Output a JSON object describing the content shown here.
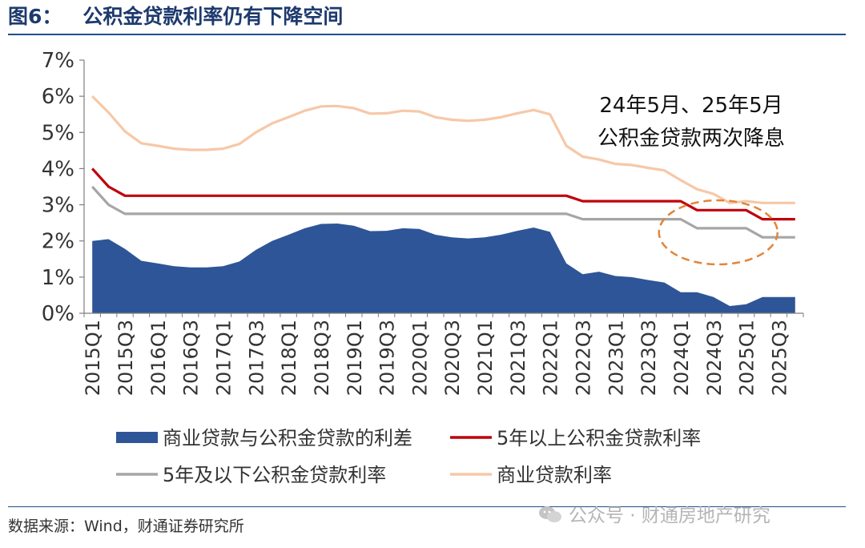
{
  "figure": {
    "label": "图6：",
    "title": "公积金贷款利率仍有下降空间",
    "source": "数据来源：Wind，财通证券研究所",
    "watermark": "公众号 · 财通房地产研究"
  },
  "chart_data": {
    "type": "area+line",
    "ylim": [
      0,
      7
    ],
    "yticks": [
      "0%",
      "1%",
      "2%",
      "3%",
      "4%",
      "5%",
      "6%",
      "7%"
    ],
    "categories": [
      "2015Q1",
      "2015Q2",
      "2015Q3",
      "2015Q4",
      "2016Q1",
      "2016Q2",
      "2016Q3",
      "2016Q4",
      "2017Q1",
      "2017Q2",
      "2017Q3",
      "2017Q4",
      "2018Q1",
      "2018Q2",
      "2018Q3",
      "2018Q4",
      "2019Q1",
      "2019Q2",
      "2019Q3",
      "2019Q4",
      "2020Q1",
      "2020Q2",
      "2020Q3",
      "2020Q4",
      "2021Q1",
      "2021Q2",
      "2021Q3",
      "2021Q4",
      "2022Q1",
      "2022Q2",
      "2022Q3",
      "2022Q4",
      "2023Q1",
      "2023Q2",
      "2023Q3",
      "2023Q4",
      "2024Q1",
      "2024Q2",
      "2024Q3",
      "2024Q4",
      "2025Q1",
      "2025Q2",
      "2025Q3",
      "2025Q4"
    ],
    "tick_labels": [
      "2015Q1",
      "2015Q3",
      "2016Q1",
      "2016Q3",
      "2017Q1",
      "2017Q3",
      "2018Q1",
      "2018Q3",
      "2019Q1",
      "2019Q3",
      "2020Q1",
      "2020Q3",
      "2021Q1",
      "2021Q3",
      "2022Q1",
      "2022Q3",
      "2023Q1",
      "2023Q3",
      "2024Q1",
      "2024Q3",
      "2025Q1",
      "2025Q3"
    ],
    "series": [
      {
        "name": "商业贷款与公积金贷款的利差",
        "kind": "area",
        "color": "#2e5597",
        "values": [
          2.0,
          2.05,
          1.78,
          1.45,
          1.38,
          1.3,
          1.27,
          1.27,
          1.3,
          1.43,
          1.75,
          2.0,
          2.17,
          2.35,
          2.47,
          2.48,
          2.42,
          2.27,
          2.28,
          2.35,
          2.33,
          2.17,
          2.1,
          2.07,
          2.1,
          2.17,
          2.28,
          2.37,
          2.25,
          1.38,
          1.08,
          1.15,
          1.03,
          1.0,
          0.92,
          0.85,
          0.58,
          0.58,
          0.45,
          0.2,
          0.25,
          0.45,
          0.45,
          0.45
        ]
      },
      {
        "name": "5年以上公积金贷款利率",
        "kind": "line",
        "color": "#c0000b",
        "values": [
          4.0,
          3.5,
          3.25,
          3.25,
          3.25,
          3.25,
          3.25,
          3.25,
          3.25,
          3.25,
          3.25,
          3.25,
          3.25,
          3.25,
          3.25,
          3.25,
          3.25,
          3.25,
          3.25,
          3.25,
          3.25,
          3.25,
          3.25,
          3.25,
          3.25,
          3.25,
          3.25,
          3.25,
          3.25,
          3.25,
          3.1,
          3.1,
          3.1,
          3.1,
          3.1,
          3.1,
          3.1,
          2.85,
          2.85,
          2.85,
          2.85,
          2.6,
          2.6,
          2.6
        ]
      },
      {
        "name": "5年及以下公积金贷款利率",
        "kind": "line",
        "color": "#a6a6a6",
        "values": [
          3.5,
          3.0,
          2.75,
          2.75,
          2.75,
          2.75,
          2.75,
          2.75,
          2.75,
          2.75,
          2.75,
          2.75,
          2.75,
          2.75,
          2.75,
          2.75,
          2.75,
          2.75,
          2.75,
          2.75,
          2.75,
          2.75,
          2.75,
          2.75,
          2.75,
          2.75,
          2.75,
          2.75,
          2.75,
          2.75,
          2.6,
          2.6,
          2.6,
          2.6,
          2.6,
          2.6,
          2.6,
          2.35,
          2.35,
          2.35,
          2.35,
          2.1,
          2.1,
          2.1
        ]
      },
      {
        "name": "商业贷款利率",
        "kind": "line",
        "color": "#f6c8a8",
        "values": [
          6.0,
          5.55,
          5.03,
          4.7,
          4.63,
          4.55,
          4.52,
          4.52,
          4.55,
          4.68,
          5.0,
          5.25,
          5.42,
          5.6,
          5.72,
          5.73,
          5.67,
          5.52,
          5.53,
          5.6,
          5.58,
          5.42,
          5.35,
          5.32,
          5.35,
          5.42,
          5.53,
          5.62,
          5.5,
          4.63,
          4.33,
          4.25,
          4.13,
          4.1,
          4.02,
          3.95,
          3.68,
          3.43,
          3.3,
          3.05,
          3.1,
          3.05,
          3.05,
          3.05
        ]
      }
    ],
    "annotation": {
      "lines": [
        "24年5月、25年5月",
        "公积金贷款两次降息"
      ],
      "color": "#111111"
    },
    "highlight": {
      "shape": "dashed-ellipse",
      "color": "#e2853a",
      "around": [
        "2024Q1",
        "2025Q1"
      ]
    },
    "legend": {
      "placement": "bottom"
    }
  }
}
